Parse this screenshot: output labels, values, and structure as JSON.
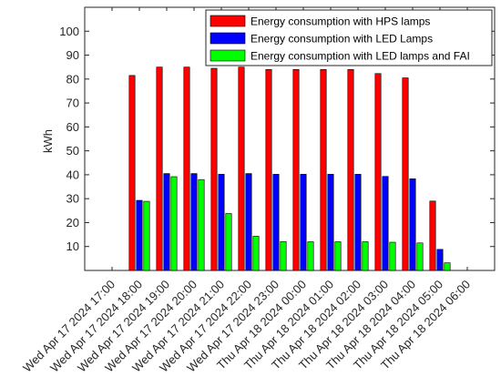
{
  "chart_data": {
    "type": "bar",
    "ylabel": "kWh",
    "xlabel": "",
    "ylim": [
      0,
      110
    ],
    "yticks": [
      10,
      20,
      30,
      40,
      50,
      60,
      70,
      80,
      90,
      100
    ],
    "categories": [
      "Wed Apr 17 2024 17:00",
      "Wed Apr 17 2024 18:00",
      "Wed Apr 17 2024 19:00",
      "Wed Apr 17 2024 20:00",
      "Wed Apr 17 2024 21:00",
      "Wed Apr 17 2024 22:00",
      "Wed Apr 17 2024 23:00",
      "Thu Apr 18 2024 00:00",
      "Thu Apr 18 2024 01:00",
      "Thu Apr 18 2024 02:00",
      "Thu Apr 18 2024 03:00",
      "Thu Apr 18 2024 04:00",
      "Thu Apr 18 2024 05:00",
      "Thu Apr 18 2024 06:00"
    ],
    "series": [
      {
        "name": "Energy consumption with HPS lamps",
        "color": "#ff0000",
        "values": [
          null,
          81.5,
          85,
          85,
          84.5,
          85,
          84,
          84,
          84,
          84,
          82.3,
          80.5,
          29,
          null
        ]
      },
      {
        "name": "Energy consumption with LED Lamps",
        "color": "#0000ff",
        "values": [
          null,
          29.3,
          40.5,
          40.5,
          40.2,
          40.5,
          40.2,
          40.2,
          40.2,
          40.2,
          39.3,
          38.3,
          8.8,
          null
        ]
      },
      {
        "name": "Energy consumption with LED lamps  and FAI",
        "color": "#00ff00",
        "values": [
          null,
          28.9,
          39.2,
          38,
          23.8,
          14.3,
          12.1,
          12,
          12,
          12,
          11.8,
          11.5,
          3.2,
          null
        ]
      }
    ],
    "grid": false,
    "legend_position": "top-right"
  }
}
